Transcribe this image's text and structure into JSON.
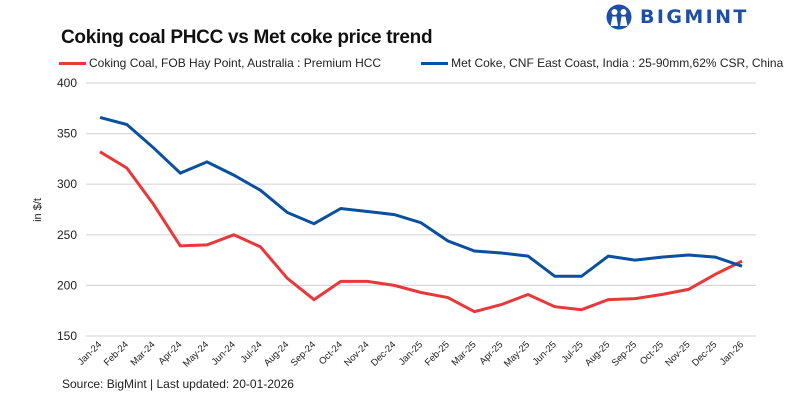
{
  "brand": {
    "logo_icon": "people-logo-icon",
    "name": "BIGMINT",
    "color": "#1e4fa8"
  },
  "footer": {
    "source": "Source: BigMint | Last updated: 20-01-2026"
  },
  "chart_data": {
    "type": "line",
    "title": "Coking coal PHCC vs Met coke price trend",
    "xlabel": "",
    "ylabel": "in $/t",
    "ylim": [
      150,
      400
    ],
    "yticks": [
      150,
      200,
      250,
      300,
      350,
      400
    ],
    "grid": true,
    "legend_position": "top",
    "categories": [
      "Jan-24",
      "Feb-24",
      "Mar-24",
      "Apr-24",
      "May-24",
      "Jun-24",
      "Jul-24",
      "Aug-24",
      "Sep-24",
      "Oct-24",
      "Nov-24",
      "Dec-24",
      "Jan-25",
      "Feb-25",
      "Mar-25",
      "Apr-25",
      "May-25",
      "Jun-25",
      "Jul-25",
      "Aug-25",
      "Sep-25",
      "Oct-25",
      "Nov-25",
      "Dec-25",
      "Jan-26"
    ],
    "series": [
      {
        "name": "Coking Coal, FOB Hay Point, Australia : Premium HCC",
        "color": "#e8383a",
        "values": [
          332,
          316,
          280,
          239,
          240,
          250,
          238,
          207,
          186,
          204,
          204,
          200,
          193,
          188,
          174,
          181,
          191,
          179,
          176,
          186,
          187,
          191,
          196,
          211,
          224
        ]
      },
      {
        "name": "Met Coke, CNF East Coast, India : 25-90mm,62% CSR, China",
        "color": "#0a4fa0",
        "values": [
          366,
          359,
          336,
          311,
          322,
          309,
          294,
          272,
          261,
          276,
          273,
          270,
          262,
          244,
          234,
          232,
          229,
          209,
          209,
          229,
          225,
          228,
          230,
          228,
          219
        ]
      }
    ]
  }
}
